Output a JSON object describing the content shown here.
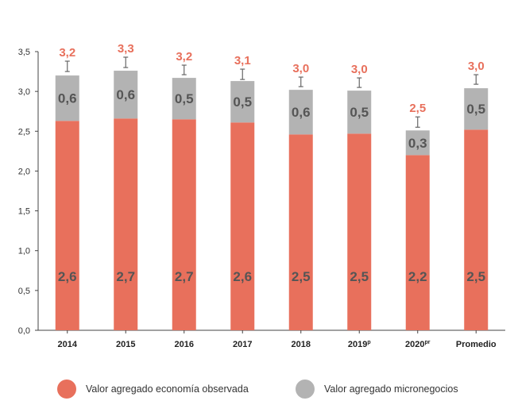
{
  "chart_data": {
    "type": "bar",
    "stacked": true,
    "categories": [
      "2014",
      "2015",
      "2016",
      "2017",
      "2018",
      "2019",
      "2020",
      "Promedio"
    ],
    "category_superscripts": [
      "",
      "",
      "",
      "",
      "",
      "p",
      "pr",
      ""
    ],
    "series": [
      {
        "name": "Valor agregado economía observada",
        "color": "#e8705c",
        "values": [
          2.63,
          2.66,
          2.65,
          2.61,
          2.46,
          2.47,
          2.2,
          2.52
        ],
        "labels": [
          "2,6",
          "2,7",
          "2,7",
          "2,6",
          "2,5",
          "2,5",
          "2,2",
          "2,5"
        ]
      },
      {
        "name": "Valor agregado micronegocios",
        "color": "#b3b3b3",
        "values": [
          0.57,
          0.6,
          0.52,
          0.52,
          0.56,
          0.54,
          0.31,
          0.52
        ],
        "labels": [
          "0,6",
          "0,6",
          "0,5",
          "0,5",
          "0,6",
          "0,5",
          "0,3",
          "0,5"
        ]
      }
    ],
    "totals": {
      "labels": [
        "3,2",
        "3,3",
        "3,2",
        "3,1",
        "3,0",
        "3,0",
        "2,5",
        "3,0"
      ],
      "color": "#e8705c"
    },
    "error_bars": [
      {
        "low": 3.25,
        "high": 3.38
      },
      {
        "low": 3.3,
        "high": 3.43
      },
      {
        "low": 3.21,
        "high": 3.33
      },
      {
        "low": 3.15,
        "high": 3.28
      },
      {
        "low": 3.06,
        "high": 3.18
      },
      {
        "low": 3.05,
        "high": 3.17
      },
      {
        "low": 2.55,
        "high": 2.68
      },
      {
        "low": 3.09,
        "high": 3.21
      }
    ],
    "y_ticks": [
      "0,0",
      "0,5",
      "1,0",
      "1,5",
      "2,0",
      "2,5",
      "3,0",
      "3,5"
    ],
    "ylim": [
      0,
      3.5
    ],
    "grid": false,
    "legend_position": "bottom"
  },
  "legend": {
    "economy_label": "Valor agregado economía observada",
    "micro_label": "Valor agregado micronegocios"
  }
}
